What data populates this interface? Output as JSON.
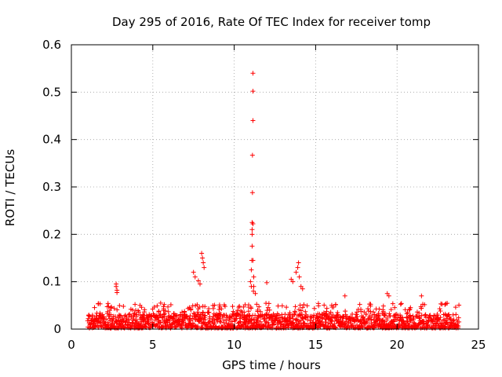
{
  "chart_data": {
    "type": "scatter",
    "title": "Day 295 of 2016, Rate Of TEC Index for receiver tomp",
    "xlabel": "GPS time / hours",
    "ylabel": "ROTI / TECUs",
    "xlim": [
      0,
      25
    ],
    "ylim": [
      0,
      0.6
    ],
    "x_ticks": [
      0,
      5,
      10,
      15,
      20,
      25
    ],
    "y_ticks": [
      0,
      0.1,
      0.2,
      0.3,
      0.4,
      0.5,
      0.6
    ],
    "x_tick_labels": [
      "0",
      "5",
      "10",
      "15",
      "20",
      "25"
    ],
    "y_tick_labels": [
      "0",
      "0.1",
      "0.2",
      "0.3",
      "0.4",
      "0.5",
      "0.6"
    ],
    "grid": true,
    "marker": "+",
    "series": [
      {
        "name": "ROTI",
        "color": "#ff0000",
        "x": [
          2.75,
          2.75,
          2.8,
          2.8,
          7.5,
          7.6,
          7.8,
          7.9,
          8.0,
          8.05,
          8.1,
          8.15,
          11.0,
          11.05,
          11.05,
          11.08,
          11.1,
          11.1,
          11.1,
          11.1,
          11.12,
          11.12,
          11.15,
          11.15,
          11.15,
          11.15,
          11.15,
          11.18,
          11.2,
          11.2,
          11.3,
          12.0,
          13.5,
          13.6,
          13.8,
          13.9,
          13.95,
          14.0,
          14.1,
          14.2,
          16.8,
          19.4,
          19.5,
          21.5
        ],
        "y": [
          0.095,
          0.09,
          0.082,
          0.077,
          0.12,
          0.11,
          0.102,
          0.095,
          0.16,
          0.15,
          0.14,
          0.13,
          0.1,
          0.09,
          0.125,
          0.145,
          0.175,
          0.2,
          0.21,
          0.225,
          0.288,
          0.367,
          0.44,
          0.502,
          0.54,
          0.222,
          0.145,
          0.08,
          0.11,
          0.09,
          0.075,
          0.098,
          0.105,
          0.1,
          0.12,
          0.13,
          0.14,
          0.11,
          0.09,
          0.085,
          0.07,
          0.075,
          0.07,
          0.07
        ],
        "baseline_band": {
          "x_range": [
            1.0,
            23.8
          ],
          "y_range": [
            0.0,
            0.03
          ],
          "description": "dense cluster of low ROTI values across the day"
        }
      }
    ]
  }
}
